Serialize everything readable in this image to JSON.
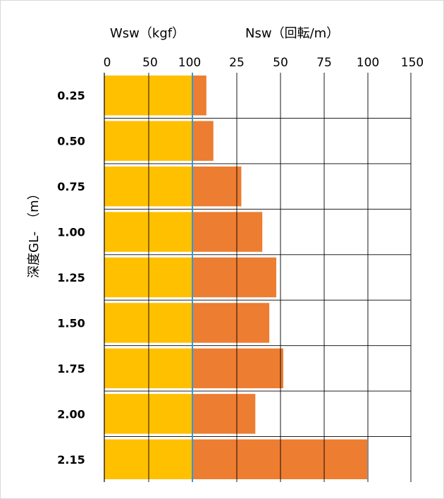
{
  "chart_data": {
    "type": "bar",
    "wsw_title": "Wsw（kgf）",
    "nsw_title": "Nsw（回転/m）",
    "ylabel": "深度GL-　（m）",
    "top_ticks": [
      "0",
      "50",
      "100",
      "25",
      "50",
      "75",
      "100",
      "150"
    ],
    "categories": [
      "0.25",
      "0.50",
      "0.75",
      "1.00",
      "1.25",
      "1.50",
      "1.75",
      "2.00",
      "2.15"
    ],
    "series": [
      {
        "name": "Wsw",
        "color": "#FFC000",
        "values": [
          100,
          100,
          100,
          100,
          100,
          100,
          100,
          100,
          100
        ]
      },
      {
        "name": "Nsw",
        "color": "#ED7D31",
        "values": [
          8,
          12,
          28,
          40,
          48,
          44,
          52,
          36,
          100
        ]
      }
    ],
    "wsw_range": [
      0,
      100
    ],
    "nsw_range": [
      0,
      125
    ],
    "divider_color": "#2E9BD6",
    "grid": true
  }
}
